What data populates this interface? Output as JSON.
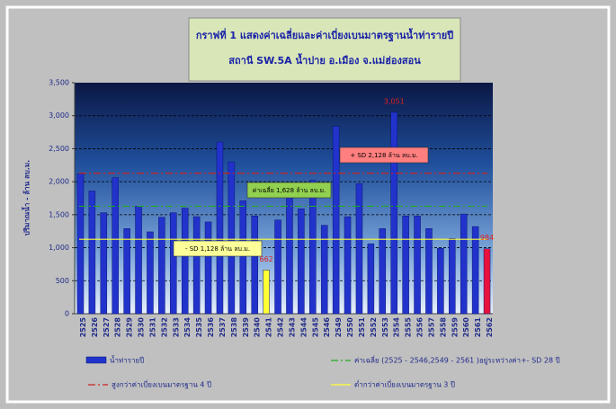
{
  "chart_data": {
    "type": "bar",
    "title": "กราฟที่ 1 แสดงค่าเฉลี่ยและค่าเบี่ยงเบนมาตรฐานน้ำท่ารายปี",
    "subtitle": "สถานี SW.5A น้ำปาย อ.เมือง จ.แม่ฮ่องสอน",
    "y_label": "ปริมาณน้ำ - ล้าน ลบ.ม.",
    "categories": [
      "2525",
      "2526",
      "2527",
      "2528",
      "2529",
      "2530",
      "2531",
      "2532",
      "2533",
      "2534",
      "2535",
      "2536",
      "2537",
      "2538",
      "2539",
      "2540",
      "2541",
      "2542",
      "2543",
      "2544",
      "2545",
      "2546",
      "2549",
      "2550",
      "2551",
      "2552",
      "2553",
      "2554",
      "2555",
      "2556",
      "2557",
      "2558",
      "2559",
      "2560",
      "2561",
      "2562"
    ],
    "series": [
      {
        "name": "น้ำท่ารายปี",
        "color": "#2233cc",
        "values": [
          2120,
          1860,
          1530,
          2060,
          1290,
          1630,
          1240,
          1460,
          1530,
          1600,
          1470,
          1390,
          2600,
          2300,
          1710,
          1480,
          662,
          1420,
          1800,
          1590,
          2020,
          1340,
          2840,
          1470,
          1970,
          1060,
          1290,
          3051,
          1480,
          1480,
          1290,
          990,
          1140,
          1510,
          1320,
          984
        ],
        "colors": [
          "#2233cc",
          "#2233cc",
          "#2233cc",
          "#2233cc",
          "#2233cc",
          "#2233cc",
          "#2233cc",
          "#2233cc",
          "#2233cc",
          "#2233cc",
          "#2233cc",
          "#2233cc",
          "#2233cc",
          "#2233cc",
          "#2233cc",
          "#2233cc",
          "#ffff33",
          "#2233cc",
          "#2233cc",
          "#2233cc",
          "#2233cc",
          "#2233cc",
          "#2233cc",
          "#2233cc",
          "#2233cc",
          "#2233cc",
          "#2233cc",
          "#2233cc",
          "#2233cc",
          "#2233cc",
          "#2233cc",
          "#2233cc",
          "#2233cc",
          "#2233cc",
          "#2233cc",
          "#e8123c"
        ],
        "data_labels": [
          {
            "index": 16,
            "value_label": "662"
          },
          {
            "index": 27,
            "value_label": "3,051"
          },
          {
            "index": 35,
            "value_label": "984"
          }
        ]
      }
    ],
    "reference_lines": [
      {
        "value": 1628,
        "label": "ค่าเฉลี่ย 1,628 ล้าน ลบ.ม.",
        "color": "#22aa22",
        "box_color": "#92d050",
        "dash": "8 3 2 3",
        "legend": "ค่าเฉลี่ย (2525 - 2546,2549 - 2561 )อยู่ระหว่างค่า+- SD 28 ปี"
      },
      {
        "value": 2128,
        "label": "+ SD 2,128 ล้าน ลบ.ม.",
        "color": "#cc2222",
        "box_color": "#ff7f7f",
        "dash": "8 3 2 3",
        "legend": "สูงกว่าค่าเบี่ยงเบนมาตรฐาน 4 ปี"
      },
      {
        "value": 1128,
        "label": "- SD 1,128 ล้าน ลบ.ม.",
        "color": "#ffff33",
        "box_color": "#ffff99",
        "dash": "none",
        "legend": "ต่ำกว่าค่าเบี่ยงเบนมาตรฐาน 3 ปี"
      }
    ],
    "ylim": [
      0,
      3500
    ],
    "yticks": [
      0,
      {
        "value": 500,
        "label": "500"
      },
      {
        "value": 1000,
        "label": "1,000"
      },
      {
        "value": 1500,
        "label": "1,500"
      },
      {
        "value": 2000,
        "label": "2,000"
      },
      {
        "value": 2500,
        "label": "2,500"
      },
      {
        "value": 3000,
        "label": "3,000"
      },
      {
        "value": 3500,
        "label": "3,500"
      }
    ],
    "grid": true
  }
}
